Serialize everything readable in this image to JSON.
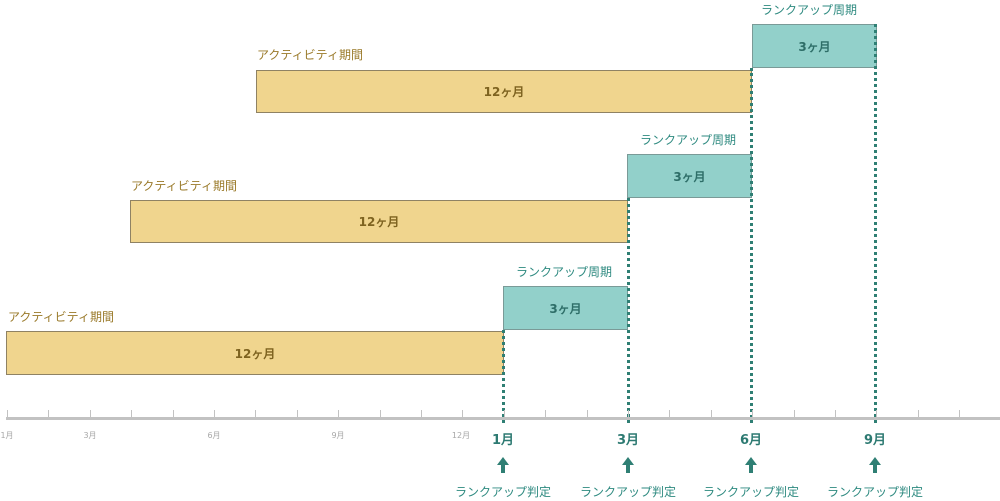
{
  "rows": [
    {
      "activity_label": "アクティビティ期間",
      "activity_duration": "12ヶ月",
      "rank_label": "ランクアップ周期",
      "rank_duration": "3ヶ月"
    },
    {
      "activity_label": "アクティビティ期間",
      "activity_duration": "12ヶ月",
      "rank_label": "ランクアップ周期",
      "rank_duration": "3ヶ月"
    },
    {
      "activity_label": "アクティビティ期間",
      "activity_duration": "12ヶ月",
      "rank_label": "ランクアップ周期",
      "rank_duration": "3ヶ月"
    }
  ],
  "axis": {
    "small_ticks": [
      "1月",
      "3月",
      "6月",
      "9月",
      "12月"
    ],
    "major_ticks": [
      "1月",
      "3月",
      "6月",
      "9月"
    ]
  },
  "judgement_label": "ランクアップ判定",
  "colors": {
    "activity_fill": "#f0d58e",
    "rank_fill": "#92d0ca",
    "accent": "#2f7f74"
  }
}
